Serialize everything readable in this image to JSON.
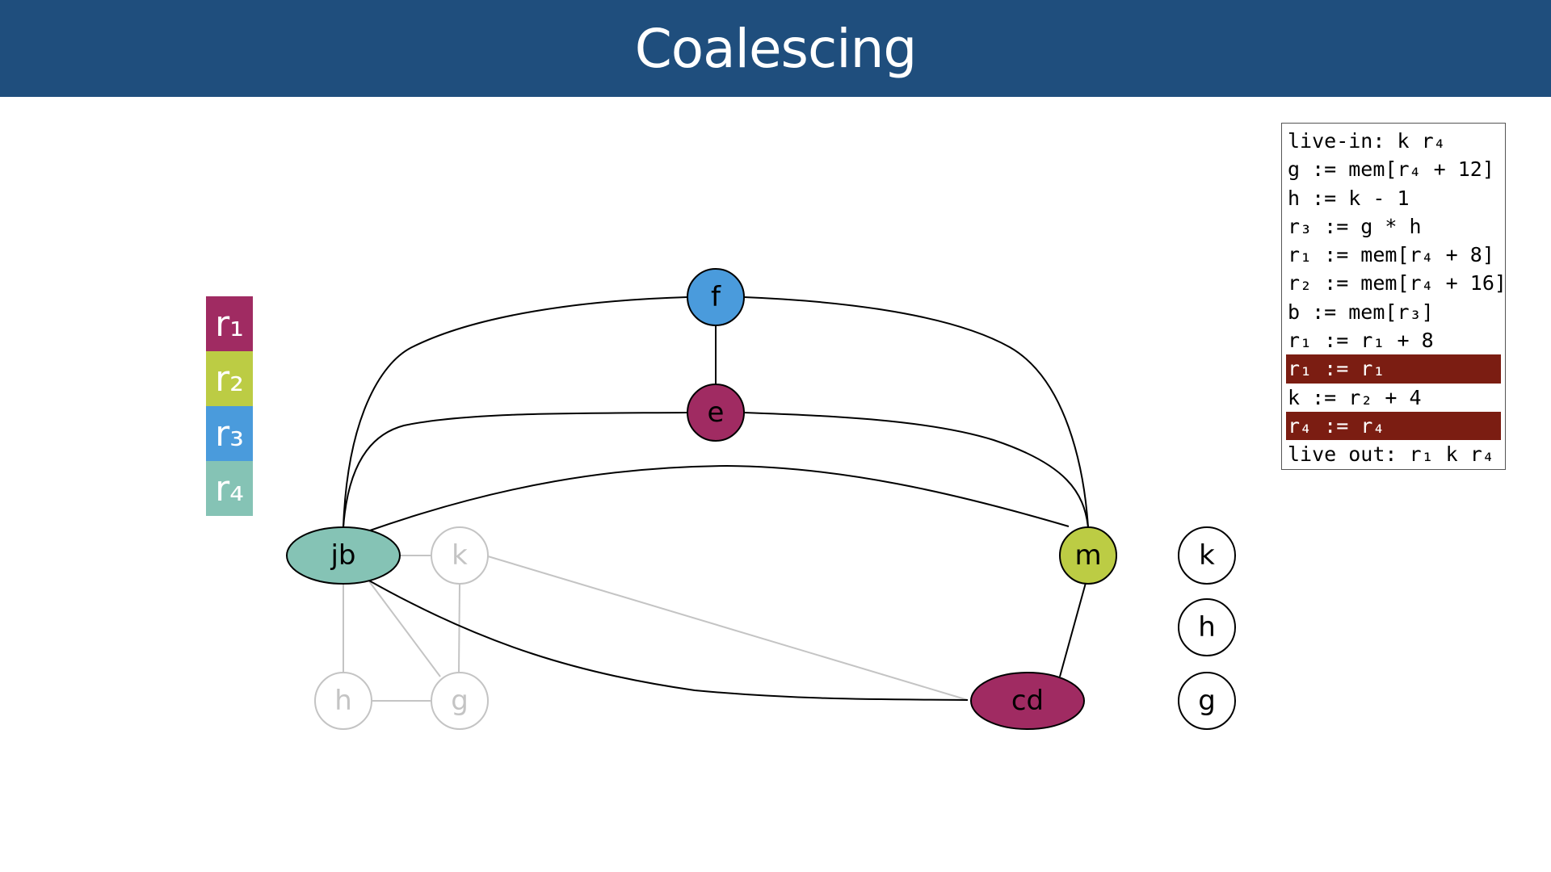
{
  "title": "Coalescing",
  "legend": [
    {
      "label": "r₁",
      "color": "#a02b62"
    },
    {
      "label": "r₂",
      "color": "#bccc44"
    },
    {
      "label": "r₃",
      "color": "#4a9bdc"
    },
    {
      "label": "r₄",
      "color": "#85c3b5"
    }
  ],
  "nodes": {
    "f": {
      "label": "f",
      "color": "#4a9bdc"
    },
    "e": {
      "label": "e",
      "color": "#a02b62"
    },
    "jb": {
      "label": "jb",
      "color": "#85c3b5"
    },
    "m": {
      "label": "m",
      "color": "#bccc44"
    },
    "cd": {
      "label": "cd",
      "color": "#a02b62"
    },
    "k_faded": {
      "label": "k"
    },
    "h_faded": {
      "label": "h"
    },
    "g_faded": {
      "label": "g"
    },
    "k_stack": {
      "label": "k"
    },
    "h_stack": {
      "label": "h"
    },
    "g_stack": {
      "label": "g"
    }
  },
  "code": [
    {
      "text": "live-in: k r₄",
      "highlight": false
    },
    {
      "text": "g := mem[r₄ + 12]",
      "highlight": false
    },
    {
      "text": "h := k - 1",
      "highlight": false
    },
    {
      "text": "r₃ := g * h",
      "highlight": false
    },
    {
      "text": "r₁ := mem[r₄ + 8]",
      "highlight": false
    },
    {
      "text": "r₂ := mem[r₄ + 16]",
      "highlight": false
    },
    {
      "text": "b := mem[r₃]",
      "highlight": false
    },
    {
      "text": "r₁ := r₁ + 8",
      "highlight": false
    },
    {
      "text": "r₁ := r₁",
      "highlight": true
    },
    {
      "text": "k := r₂ + 4",
      "highlight": false
    },
    {
      "text": "r₄ := r₄",
      "highlight": true
    },
    {
      "text": "live out: r₁ k r₄",
      "highlight": false
    }
  ]
}
